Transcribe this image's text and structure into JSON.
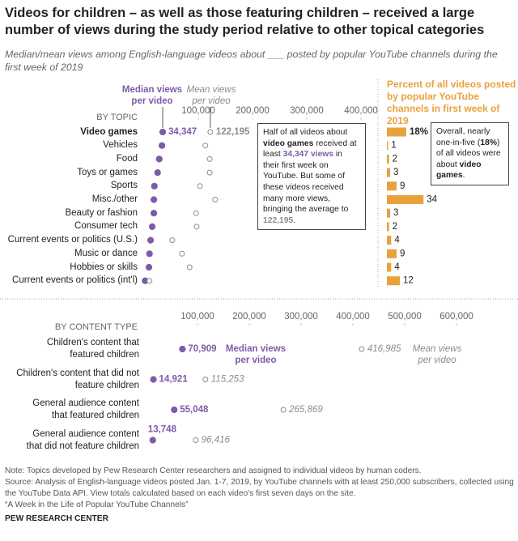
{
  "header": {
    "title": "Videos for children – as well as those featuring children – received a large number of views during the study period relative to other topical categories",
    "subtitle": "Median/mean views among English-language videos about ___ posted by popular YouTube channels during the first week of 2019"
  },
  "chart_data": [
    {
      "type": "dot",
      "group_label": "BY TOPIC",
      "categories": [
        "Video games",
        "Vehicles",
        "Food",
        "Toys or games",
        "Sports",
        "Misc./other",
        "Beauty or fashion",
        "Consumer tech",
        "Current events or politics (U.S.)",
        "Music or dance",
        "Hobbies or skills",
        "Current events or politics (int'l)"
      ],
      "series": [
        {
          "name": "Median views per video",
          "color": "#7d5ba6",
          "filled": true,
          "values": [
            34347,
            33000,
            28000,
            25000,
            19000,
            18000,
            18000,
            15000,
            12000,
            10000,
            9000,
            2000
          ],
          "value_labels": [
            "34,347",
            null,
            null,
            null,
            null,
            null,
            null,
            null,
            null,
            null,
            null,
            null
          ]
        },
        {
          "name": "Mean views per video",
          "color": "#8c8c8c",
          "filled": false,
          "values": [
            122195,
            113000,
            121000,
            121000,
            103000,
            131000,
            96000,
            97000,
            52000,
            70000,
            84000,
            10000
          ],
          "value_labels": [
            "122,195",
            null,
            null,
            null,
            null,
            null,
            null,
            null,
            null,
            null,
            null,
            null
          ]
        }
      ],
      "xlim": [
        0,
        450000
      ],
      "xticks": [
        {
          "value": 100000,
          "label": "100,000"
        },
        {
          "value": 200000,
          "label": "200,000"
        },
        {
          "value": 300000,
          "label": "300,000"
        },
        {
          "value": 400000,
          "label": "400,000"
        }
      ],
      "annotation": [
        "Half of all videos about ",
        "video games",
        " received at least ",
        "34,347 views",
        " in their first week on YouTube. But some of these videos received many more views, bringing the average to ",
        "122,195",
        "."
      ]
    },
    {
      "type": "bar",
      "title": "Percent of all videos posted by popular YouTube channels in first week of 2019",
      "color": "#e9a23b",
      "values": [
        18,
        1,
        2,
        3,
        9,
        34,
        3,
        2,
        4,
        9,
        4,
        12
      ],
      "value_labels": [
        "18%",
        "1",
        "2",
        "3",
        "9",
        "34",
        "3",
        "2",
        "4",
        "9",
        "4",
        "12"
      ],
      "annotation": [
        "Overall, nearly one-in-five (",
        "18%",
        ") of all videos were about ",
        "video games",
        "."
      ]
    },
    {
      "type": "dot",
      "group_label": "BY CONTENT TYPE",
      "categories": [
        "Children's content that featured children",
        "Children's content that did not feature children",
        "General audience content that featured children",
        "General audience content that did not feature children"
      ],
      "series": [
        {
          "name": "Median views per video",
          "color": "#7d5ba6",
          "filled": true,
          "values": [
            70909,
            14921,
            55048,
            13748
          ],
          "value_labels": [
            "70,909",
            "14,921",
            "55,048",
            "13,748"
          ]
        },
        {
          "name": "Mean views per video",
          "color": "#8c8c8c",
          "filled": false,
          "values": [
            416985,
            115253,
            265869,
            96416
          ],
          "value_labels": [
            "416,985",
            "115,253",
            "265,869",
            "96,416"
          ]
        }
      ],
      "xlim": [
        0,
        600000
      ],
      "xticks": [
        {
          "value": 100000,
          "label": "100,000"
        },
        {
          "value": 200000,
          "label": "200,000"
        },
        {
          "value": 300000,
          "label": "300,000"
        },
        {
          "value": 400000,
          "label": "400,000"
        },
        {
          "value": 500000,
          "label": "500,000"
        },
        {
          "value": 600000,
          "label": "600,000"
        }
      ]
    }
  ],
  "notes": [
    "Note: Topics developed by Pew Research Center researchers and assigned to individual videos by human coders.",
    "Source: Analysis of English-language videos posted Jan. 1-7, 2019, by YouTube channels with at least 250,000 subscribers, collected using the YouTube Data API. View totals calculated based on each video's first seven days on the site.",
    "“A Week in the Life of Popular YouTube Channels”",
    "PEW RESEARCH CENTER"
  ]
}
